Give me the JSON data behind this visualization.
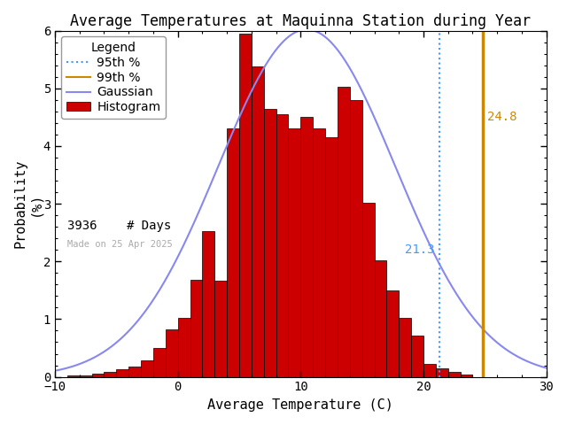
{
  "title": "Average Temperatures at Maquinna Station during Year",
  "xlabel": "Average Temperature (C)",
  "ylabel": "Probability\n(%)",
  "xlim": [
    -10,
    30
  ],
  "ylim": [
    0,
    6
  ],
  "yticks": [
    0,
    1,
    2,
    3,
    4,
    5,
    6
  ],
  "xticks": [
    -10,
    0,
    10,
    20,
    30
  ],
  "bin_left": [
    -9,
    -8,
    -7,
    -6,
    -5,
    -4,
    -3,
    -2,
    -1,
    0,
    1,
    2,
    3,
    4,
    5,
    6,
    7,
    8,
    9,
    10,
    11,
    12,
    13,
    14,
    15,
    16,
    17,
    18,
    19,
    20,
    21,
    22,
    23,
    24,
    25,
    26,
    27,
    28
  ],
  "bin_heights": [
    0.02,
    0.03,
    0.05,
    0.08,
    0.13,
    0.18,
    0.28,
    0.5,
    0.82,
    1.02,
    1.68,
    2.52,
    1.67,
    4.3,
    5.95,
    5.38,
    4.65,
    4.55,
    4.3,
    4.5,
    4.3,
    4.15,
    5.02,
    4.8,
    3.02,
    2.02,
    1.5,
    1.02,
    0.72,
    0.22,
    0.15,
    0.08,
    0.04,
    0.0,
    0.0,
    0.0,
    0.0,
    0.0
  ],
  "hist_color": "#cc0000",
  "hist_edgecolor": "#000000",
  "gaussian_mean": 10.5,
  "gaussian_std": 7.2,
  "gaussian_peak": 6.02,
  "gaussian_color": "#8888ee",
  "percentile_95": 21.3,
  "percentile_99": 24.8,
  "percentile_95_color": "#4499ff",
  "percentile_99_color": "#cc8800",
  "n_days": 3936,
  "made_on": "Made on 25 Apr 2025",
  "background_color": "#ffffff",
  "title_fontsize": 12,
  "axis_fontsize": 11,
  "legend_fontsize": 10,
  "tick_fontsize": 10
}
